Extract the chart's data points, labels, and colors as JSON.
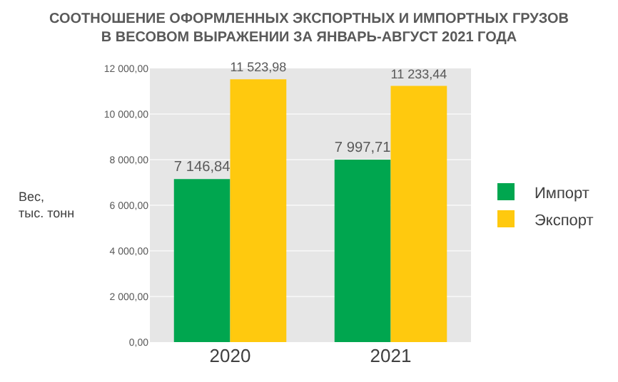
{
  "chart_data": {
    "type": "bar",
    "title": "СООТНОШЕНИЕ ОФОРМЛЕННЫХ ЭКСПОРТНЫХ И ИМПОРТНЫХ ГРУЗОВ\nВ ВЕСОВОМ ВЫРАЖЕНИИ ЗА ЯНВАРЬ-АВГУСТ 2021 ГОДА",
    "ylabel": "Вес,\nтыс. тонн",
    "categories": [
      "2020",
      "2021"
    ],
    "series": [
      {
        "name": "Импорт",
        "color": "#00a64f",
        "values": [
          7146.84,
          7997.71
        ],
        "value_labels": [
          "7 146,84",
          "7 997,71"
        ]
      },
      {
        "name": "Экспорт",
        "color": "#ffc90e",
        "values": [
          11523.98,
          11233.44
        ],
        "value_labels": [
          "11 523,98",
          "11 233,44"
        ]
      }
    ],
    "ylim": [
      0,
      12000
    ],
    "yticks": [
      {
        "value": 0,
        "label": "0,00"
      },
      {
        "value": 2000,
        "label": "2 000,00"
      },
      {
        "value": 4000,
        "label": "4 000,00"
      },
      {
        "value": 6000,
        "label": "6 000,00"
      },
      {
        "value": 8000,
        "label": "8 000,00"
      },
      {
        "value": 10000,
        "label": "10 000,00"
      },
      {
        "value": 12000,
        "label": "12 000,00"
      }
    ],
    "grid": "y",
    "legend": "right"
  }
}
